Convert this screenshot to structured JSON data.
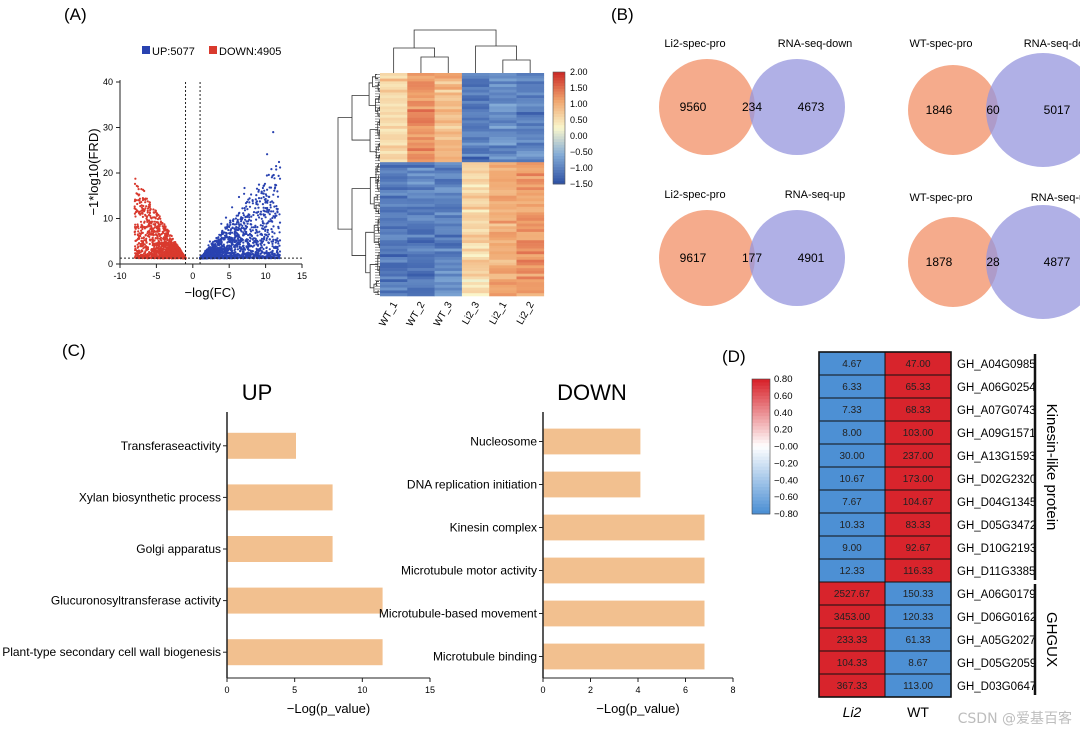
{
  "watermark": "CSDN @爱基百客",
  "chart_data": [
    {
      "id": "A1",
      "panel_label": "(A)",
      "type": "scatter",
      "title": "",
      "xlabel": "−log(FC)",
      "ylabel": "−1*log10(FRD)",
      "xlim": [
        -10,
        15
      ],
      "ylim": [
        0,
        40
      ],
      "xticks": [
        -10,
        -5,
        0,
        5,
        10,
        15
      ],
      "yticks": [
        0,
        10,
        20,
        30,
        40
      ],
      "legend": [
        {
          "label": "UP:5077",
          "color": "#2942b0"
        },
        {
          "label": "DOWN:4905",
          "color": "#d93a2e"
        }
      ],
      "series": [
        {
          "name": "UP",
          "count": 5077,
          "color": "#2942b0",
          "x_range": [
            1,
            12
          ],
          "y_max": 29
        },
        {
          "name": "DOWN",
          "count": 4905,
          "color": "#d93a2e",
          "x_range": [
            -8,
            -1
          ],
          "y_max": 21
        }
      ],
      "thresholds": {
        "x": [
          -1,
          1
        ],
        "y": 1.3
      }
    },
    {
      "id": "A2",
      "type": "heatmap",
      "columns": [
        "WT_1",
        "WT_2",
        "WT_3",
        "Li2_3",
        "Li2_1",
        "Li2_2"
      ],
      "colorbar": {
        "min": -1.5,
        "max": 2.0,
        "ticks": [
          "2.00",
          "1.50",
          "1.00",
          "0.50",
          "0.00",
          "−0.50",
          "−1.00",
          "−1.50"
        ]
      },
      "row_groups": [
        {
          "name": "upper",
          "rows": 32,
          "column_means": [
            0.6,
            1.3,
            0.9,
            -1.1,
            -0.9,
            -1.0
          ]
        },
        {
          "name": "lower",
          "rows": 48,
          "column_means": [
            -1.1,
            -1.1,
            -1.0,
            0.6,
            1.0,
            1.2
          ]
        }
      ]
    },
    {
      "id": "B",
      "panel_label": "(B)",
      "type": "venn",
      "diagrams": [
        {
          "left_label": "Li2-spec-pro",
          "right_label": "RNA-seq-down",
          "left_only": 9560,
          "overlap": 234,
          "right_only": 4673
        },
        {
          "left_label": "WT-spec-pro",
          "right_label": "RNA-seq-down",
          "left_only": 1846,
          "overlap": 60,
          "right_only": 5017
        },
        {
          "left_label": "Li2-spec-pro",
          "right_label": "RNA-seq-up",
          "left_only": 9617,
          "overlap": 177,
          "right_only": 4901
        },
        {
          "left_label": "WT-spec-pro",
          "right_label": "RNA-seq-up",
          "left_only": 1878,
          "overlap": 28,
          "right_only": 4877
        }
      ]
    },
    {
      "id": "C1",
      "panel_label": "(C)",
      "type": "bar",
      "orientation": "horizontal",
      "title": "UP",
      "xlabel": "−Log(p_value)",
      "xlim": [
        0,
        15
      ],
      "xticks": [
        0,
        5,
        10,
        15
      ],
      "categories": [
        "Transferaseactivity",
        "Xylan biosynthetic process",
        "Golgi apparatus",
        "Glucuronosyltransferase activity",
        "Plant-type secondary cell wall biogenesis"
      ],
      "values": [
        5.1,
        7.8,
        7.8,
        11.5,
        11.5
      ],
      "color": "#f2c08f"
    },
    {
      "id": "C2",
      "type": "bar",
      "orientation": "horizontal",
      "title": "DOWN",
      "xlabel": "−Log(p_value)",
      "xlim": [
        0,
        8
      ],
      "xticks": [
        0,
        2,
        4,
        6,
        8
      ],
      "categories": [
        "Nucleosome",
        "DNA replication initiation",
        "Kinesin complex",
        "Microtubule motor activity",
        "Microtubule-based movement",
        "Microtubule binding"
      ],
      "values": [
        4.1,
        4.1,
        6.8,
        6.8,
        6.8,
        6.8
      ],
      "color": "#f2c08f"
    },
    {
      "id": "D",
      "panel_label": "(D)",
      "type": "heatmap",
      "columns": [
        "Li2",
        "WT"
      ],
      "colorbar": {
        "min": -0.8,
        "max": 0.8,
        "ticks": [
          "0.80",
          "0.60",
          "0.40",
          "0.20",
          "−0.00",
          "−0.20",
          "−0.40",
          "−0.60",
          "−0.80"
        ]
      },
      "rows": [
        {
          "gene": "GH_A04G0985",
          "li2": "4.67",
          "wt": "47.00"
        },
        {
          "gene": "GH_A06G0254",
          "li2": "6.33",
          "wt": "65.33"
        },
        {
          "gene": "GH_A07G0743",
          "li2": "7.33",
          "wt": "68.33"
        },
        {
          "gene": "GH_A09G1571",
          "li2": "8.00",
          "wt": "103.00"
        },
        {
          "gene": "GH_A13G1593",
          "li2": "30.00",
          "wt": "237.00"
        },
        {
          "gene": "GH_D02G2320",
          "li2": "10.67",
          "wt": "173.00"
        },
        {
          "gene": "GH_D04G1345",
          "li2": "7.67",
          "wt": "104.67"
        },
        {
          "gene": "GH_D05G3472",
          "li2": "10.33",
          "wt": "83.33"
        },
        {
          "gene": "GH_D10G2193",
          "li2": "9.00",
          "wt": "92.67"
        },
        {
          "gene": "GH_D11G3385",
          "li2": "12.33",
          "wt": "116.33"
        },
        {
          "gene": "GH_A06G0179",
          "li2": "2527.67",
          "wt": "150.33"
        },
        {
          "gene": "GH_D06G0162",
          "li2": "3453.00",
          "wt": "120.33"
        },
        {
          "gene": "GH_A05G2027",
          "li2": "233.33",
          "wt": "61.33"
        },
        {
          "gene": "GH_D05G2059",
          "li2": "104.33",
          "wt": "8.67"
        },
        {
          "gene": "GH_D03G0647",
          "li2": "367.33",
          "wt": "113.00"
        }
      ],
      "groups": [
        {
          "label": "Kinesin-like protein",
          "from": 0,
          "to": 9
        },
        {
          "label": "GHGUX",
          "from": 10,
          "to": 14
        }
      ],
      "colors": {
        "high": "#d8242c",
        "low": "#4d90d4"
      }
    }
  ]
}
